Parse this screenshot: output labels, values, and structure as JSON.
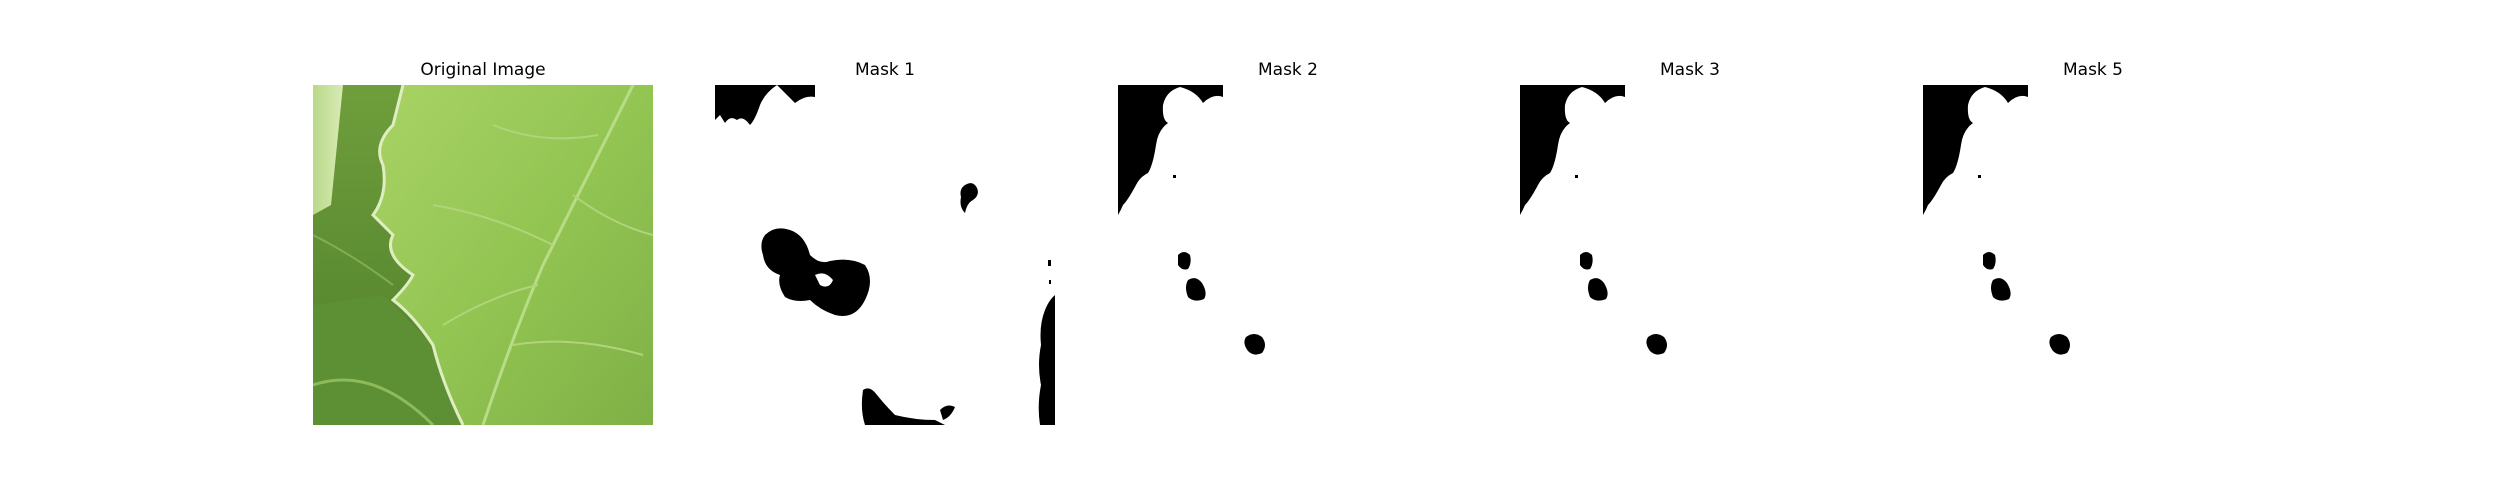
{
  "panels": [
    {
      "title": "Original Image"
    },
    {
      "title": "Mask 1"
    },
    {
      "title": "Mask 2"
    },
    {
      "title": "Mask 3"
    },
    {
      "title": "Mask 5"
    }
  ],
  "colors": {
    "mask_foreground": "#ffffff",
    "mask_background": "#000000",
    "leaf_light": "#9cc95a",
    "leaf_mid": "#7fb046",
    "leaf_dark": "#5b8c33"
  }
}
